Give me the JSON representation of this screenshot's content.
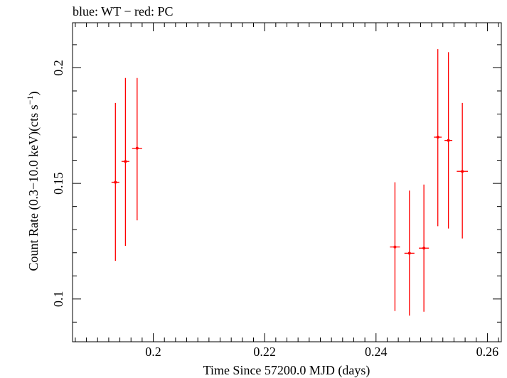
{
  "chart_data": {
    "type": "scatter",
    "title": "blue: WT − red: PC",
    "xlabel": "Time Since 57200.0 MJD (days)",
    "ylabel_main": "Count Rate (0.3−10.0 keV)(cts s",
    "ylabel_sup": "−1",
    "ylabel_close": ")",
    "xlim": [
      0.1855,
      0.2625
    ],
    "ylim": [
      0.0815,
      0.2195
    ],
    "x_ticks": [
      0.2,
      0.22,
      0.24,
      0.26
    ],
    "x_tick_labels": [
      "0.2",
      "0.22",
      "0.24",
      "0.26"
    ],
    "y_ticks": [
      0.1,
      0.15,
      0.2
    ],
    "y_tick_labels": [
      "0.1",
      "0.15",
      "0.2"
    ],
    "grid": false,
    "series": [
      {
        "color": "#ff0000",
        "points": [
          {
            "x": 0.1932,
            "xerr": 0.0007,
            "y": 0.1505,
            "ylo": 0.1165,
            "yhi": 0.1848
          },
          {
            "x": 0.195,
            "xerr": 0.0007,
            "y": 0.1595,
            "ylo": 0.123,
            "yhi": 0.1956
          },
          {
            "x": 0.1971,
            "xerr": 0.0009,
            "y": 0.1652,
            "ylo": 0.134,
            "yhi": 0.1956
          },
          {
            "x": 0.2434,
            "xerr": 0.0009,
            "y": 0.1225,
            "ylo": 0.0948,
            "yhi": 0.1505
          },
          {
            "x": 0.246,
            "xerr": 0.0009,
            "y": 0.1198,
            "ylo": 0.0928,
            "yhi": 0.1469
          },
          {
            "x": 0.2486,
            "xerr": 0.0009,
            "y": 0.122,
            "ylo": 0.0945,
            "yhi": 0.1495
          },
          {
            "x": 0.2511,
            "xerr": 0.0007,
            "y": 0.17,
            "ylo": 0.1315,
            "yhi": 0.2081
          },
          {
            "x": 0.253,
            "xerr": 0.0007,
            "y": 0.1686,
            "ylo": 0.1305,
            "yhi": 0.2068
          },
          {
            "x": 0.2555,
            "xerr": 0.001,
            "y": 0.1552,
            "ylo": 0.1262,
            "yhi": 0.1848
          }
        ]
      }
    ]
  }
}
